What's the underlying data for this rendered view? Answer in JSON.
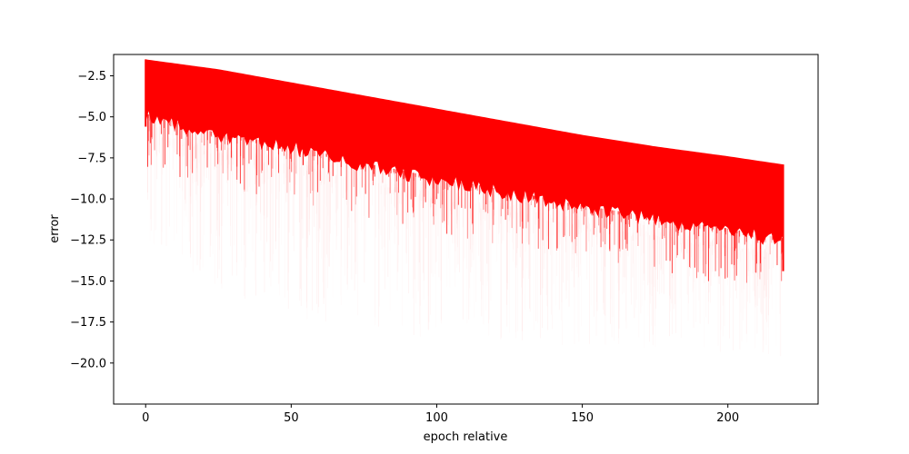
{
  "chart_data": {
    "type": "area",
    "title": "",
    "xlabel": "epoch relative",
    "ylabel": "error",
    "xlim": [
      -11,
      231
    ],
    "ylim": [
      -22.5,
      -1.2
    ],
    "grid": false,
    "legend": "none",
    "series_color": "#ff0000",
    "x_ticks": [
      0,
      50,
      100,
      150,
      200
    ],
    "x_tick_labels": [
      "0",
      "50",
      "100",
      "150",
      "200"
    ],
    "y_ticks": [
      -2.5,
      -5.0,
      -7.5,
      -10.0,
      -12.5,
      -15.0,
      -17.5,
      -20.0
    ],
    "y_tick_labels": [
      "−2.5",
      "−5.0",
      "−7.5",
      "−10.0",
      "−12.5",
      "−15.0",
      "−17.5",
      "−20.0"
    ],
    "envelope": {
      "x": [
        0,
        25,
        50,
        75,
        100,
        125,
        150,
        175,
        200,
        219
      ],
      "upper": [
        -1.5,
        -2.1,
        -2.9,
        -3.7,
        -4.5,
        -5.3,
        -6.1,
        -6.8,
        -7.4,
        -7.9
      ],
      "dense_lower": [
        -5.0,
        -6.2,
        -6.9,
        -8.0,
        -8.9,
        -9.7,
        -10.6,
        -11.3,
        -12.0,
        -12.6
      ],
      "faint_lower": [
        -11.0,
        -13.5,
        -15.0,
        -15.8,
        -16.5,
        -16.9,
        -17.2,
        -17.5,
        -17.8,
        -18.2
      ]
    }
  }
}
